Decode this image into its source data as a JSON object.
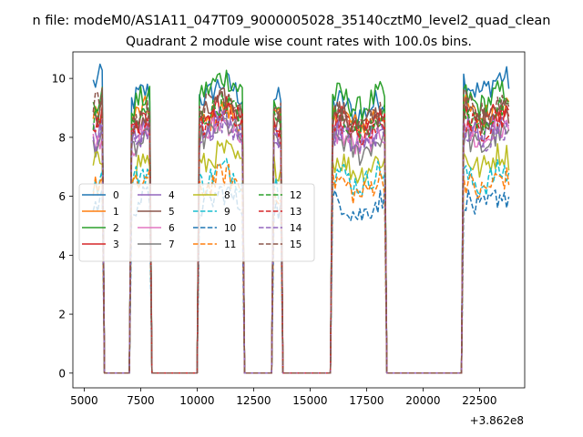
{
  "suptitle": "n file: modeM0/AS1A11_047T09_9000005028_35140cztM0_level2_quad_clean",
  "chart_data": {
    "type": "line",
    "title": "Quadrant 2 module wise count rates with 100.0s bins.",
    "xlabel": "",
    "ylabel": "",
    "offset_text": "+3.862e8",
    "xlim": [
      4500,
      24500
    ],
    "ylim": [
      -0.5,
      10.9
    ],
    "xticks": [
      5000,
      7500,
      10000,
      12500,
      15000,
      17500,
      20000,
      22500
    ],
    "xtick_labels": [
      "5000",
      "7500",
      "10000",
      "12500",
      "15000",
      "17500",
      "20000",
      "22500"
    ],
    "yticks": [
      0,
      2,
      4,
      6,
      8,
      10
    ],
    "ytick_labels": [
      "0",
      "2",
      "4",
      "6",
      "8",
      "10"
    ],
    "legend_loc": "center-left",
    "legend_ncol": 4,
    "segments": [
      [
        5400,
        5800
      ],
      [
        7100,
        7900
      ],
      [
        10100,
        12000
      ],
      [
        13400,
        13700
      ],
      [
        16000,
        18300
      ],
      [
        21800,
        23800
      ]
    ],
    "x_note": "x values are offsets from 3.862e8 s, 100 s bins; rates drop to 0 between segments",
    "series": [
      {
        "name": "0",
        "color": "#1f77b4",
        "dash": "solid",
        "segment_levels": [
          10.0,
          9.3,
          9.6,
          9.5,
          9.0,
          9.8
        ]
      },
      {
        "name": "1",
        "color": "#ff7f0e",
        "dash": "solid",
        "segment_levels": [
          8.8,
          8.7,
          8.7,
          8.8,
          8.6,
          8.9
        ]
      },
      {
        "name": "2",
        "color": "#2ca02c",
        "dash": "solid",
        "segment_levels": [
          9.2,
          9.1,
          9.8,
          9.3,
          9.2,
          9.3
        ]
      },
      {
        "name": "3",
        "color": "#d62728",
        "dash": "solid",
        "segment_levels": [
          8.6,
          8.3,
          8.9,
          8.6,
          8.4,
          8.6
        ]
      },
      {
        "name": "4",
        "color": "#9467bd",
        "dash": "solid",
        "segment_levels": [
          8.3,
          8.0,
          8.5,
          8.3,
          8.1,
          8.3
        ]
      },
      {
        "name": "5",
        "color": "#8c564b",
        "dash": "solid",
        "segment_levels": [
          8.9,
          8.4,
          9.0,
          8.8,
          8.6,
          8.8
        ]
      },
      {
        "name": "6",
        "color": "#e377c2",
        "dash": "solid",
        "segment_levels": [
          8.0,
          7.8,
          8.3,
          8.0,
          7.9,
          8.1
        ]
      },
      {
        "name": "7",
        "color": "#7f7f7f",
        "dash": "solid",
        "segment_levels": [
          7.9,
          7.6,
          8.2,
          7.9,
          7.7,
          7.9
        ]
      },
      {
        "name": "8",
        "color": "#bcbd22",
        "dash": "solid",
        "segment_levels": [
          7.2,
          7.0,
          7.3,
          7.2,
          7.0,
          7.2
        ]
      },
      {
        "name": "9",
        "color": "#17becf",
        "dash": "dashed",
        "segment_levels": [
          6.5,
          6.6,
          6.7,
          6.6,
          6.6,
          6.6
        ]
      },
      {
        "name": "10",
        "color": "#1f77b4",
        "dash": "dashed",
        "segment_levels": [
          5.8,
          5.7,
          5.9,
          5.8,
          5.6,
          5.8
        ]
      },
      {
        "name": "11",
        "color": "#ff7f0e",
        "dash": "dashed",
        "segment_levels": [
          6.4,
          6.3,
          6.5,
          6.4,
          6.3,
          6.4
        ]
      },
      {
        "name": "12",
        "color": "#2ca02c",
        "dash": "dashed",
        "segment_levels": [
          8.7,
          8.5,
          8.9,
          8.7,
          8.5,
          8.7
        ]
      },
      {
        "name": "13",
        "color": "#d62728",
        "dash": "dashed",
        "segment_levels": [
          8.5,
          8.2,
          8.6,
          8.5,
          8.3,
          8.5
        ]
      },
      {
        "name": "14",
        "color": "#9467bd",
        "dash": "dashed",
        "segment_levels": [
          8.1,
          7.9,
          8.3,
          8.1,
          7.9,
          8.1
        ]
      },
      {
        "name": "15",
        "color": "#8c564b",
        "dash": "dashed",
        "segment_levels": [
          9.3,
          8.6,
          9.3,
          9.1,
          8.5,
          9.0
        ]
      }
    ]
  }
}
